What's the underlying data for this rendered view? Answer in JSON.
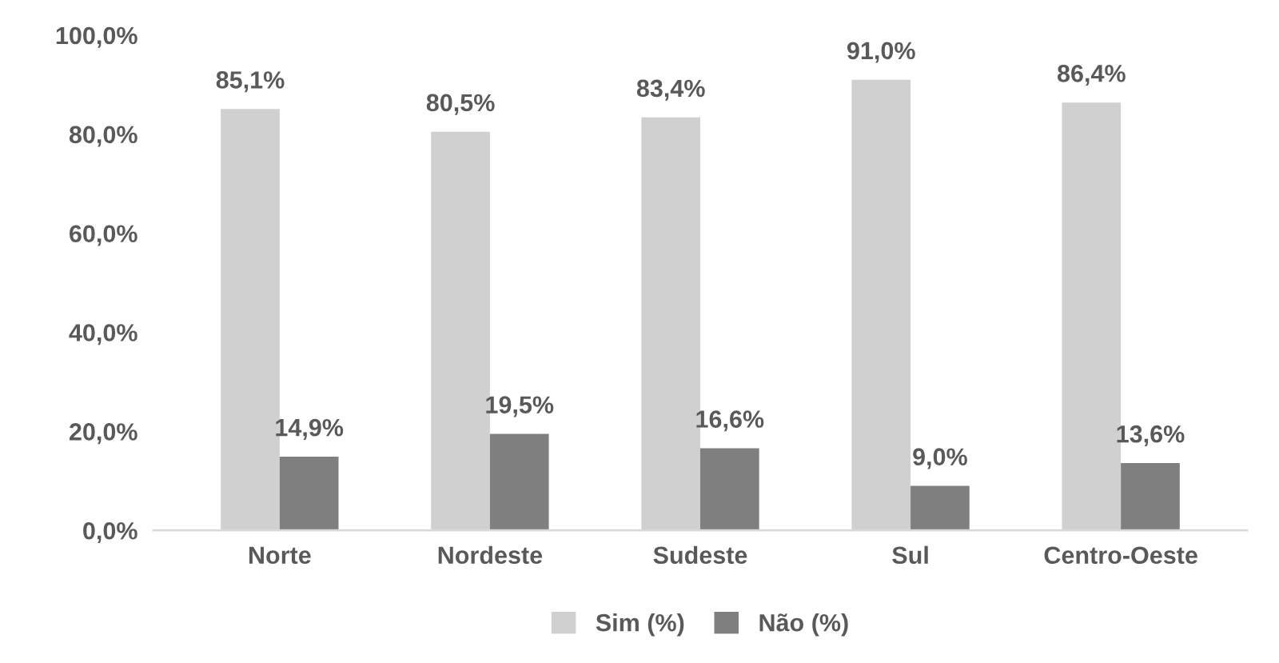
{
  "chart_data": {
    "type": "bar",
    "categories": [
      "Norte",
      "Nordeste",
      "Sudeste",
      "Sul",
      "Centro-Oeste"
    ],
    "series": [
      {
        "name": "Sim (%)",
        "color": "#d0d0d0",
        "values": [
          85.1,
          80.5,
          83.4,
          91.0,
          86.4
        ],
        "value_labels": [
          "85,1%",
          "80,5%",
          "83,4%",
          "91,0%",
          "86,4%"
        ]
      },
      {
        "name": "Não (%)",
        "color": "#7f7f7f",
        "values": [
          14.9,
          19.5,
          16.6,
          9.0,
          13.6
        ],
        "value_labels": [
          "14,9%",
          "19,5%",
          "16,6%",
          "9,0%",
          "13,6%"
        ]
      }
    ],
    "ylim": [
      0,
      100
    ],
    "yticks": [
      {
        "value": 0,
        "label": "0,0%"
      },
      {
        "value": 20,
        "label": "20,0%"
      },
      {
        "value": 40,
        "label": "40,0%"
      },
      {
        "value": 60,
        "label": "60,0%"
      },
      {
        "value": 80,
        "label": "80,0%"
      },
      {
        "value": 100,
        "label": "100,0%"
      }
    ],
    "grid": false,
    "legend": "bottom"
  }
}
